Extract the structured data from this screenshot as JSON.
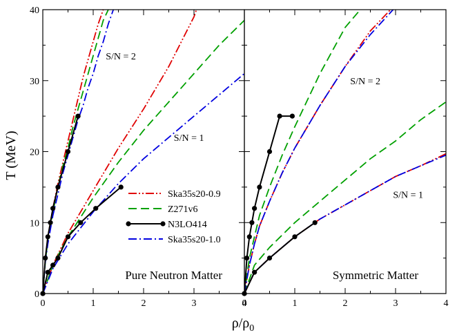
{
  "chart_data": {
    "type": "line",
    "ylabel": "T (MeV)",
    "xlabel": "ρ/ρ",
    "xlabel_sub": "0",
    "ylim": [
      0,
      40
    ],
    "yticks": [
      0,
      10,
      20,
      30,
      40
    ],
    "grid": false,
    "legend_position": "center-right of left panel",
    "series_styles": [
      {
        "name": "Ska35s20-0.9",
        "color": "#e00000",
        "dash": "dash-dot-dot",
        "markers": false
      },
      {
        "name": "Z271v6",
        "color": "#00a000",
        "dash": "dash",
        "markers": false
      },
      {
        "name": "N3LO414",
        "color": "#000000",
        "dash": "solid",
        "markers": true
      },
      {
        "name": "Ska35s20-1.0",
        "color": "#0000e0",
        "dash": "dash-dot",
        "markers": false
      }
    ],
    "panels": [
      {
        "label": "Pure Neutron Matter",
        "xlim": [
          0,
          4
        ],
        "xticks": [
          0,
          1,
          2,
          3,
          4
        ],
        "annotations": [
          {
            "text": "S/N = 2",
            "x": 1.25,
            "y": 33
          },
          {
            "text": "S/N = 1",
            "x": 2.6,
            "y": 21.5
          }
        ],
        "series": [
          {
            "name": "Ska35s20-0.9",
            "curve": "S/N = 2",
            "x": [
              0,
              0.05,
              0.1,
              0.2,
              0.3,
              0.4,
              0.5,
              0.6,
              0.7,
              0.8,
              0.9,
              1.0,
              1.1,
              1.2
            ],
            "y": [
              0,
              5,
              8,
              12,
              15.5,
              18.5,
              21.5,
              24.5,
              27.5,
              30.5,
              33,
              35.5,
              38,
              40
            ]
          },
          {
            "name": "Ska35s20-0.9",
            "curve": "S/N = 1",
            "x": [
              0,
              0.2,
              0.5,
              1.0,
              1.5,
              2.0,
              2.5,
              3.0,
              3.05
            ],
            "y": [
              0,
              4,
              8.5,
              14.5,
              20.5,
              26,
              32,
              39,
              40
            ]
          },
          {
            "name": "Z271v6",
            "curve": "S/N = 2",
            "x": [
              0,
              0.05,
              0.1,
              0.2,
              0.3,
              0.4,
              0.5,
              0.6,
              0.7,
              0.8,
              0.9,
              1.0,
              1.1,
              1.2,
              1.3
            ],
            "y": [
              0,
              4.5,
              7.5,
              11.5,
              15,
              18,
              20.5,
              23.5,
              26,
              28.5,
              31,
              33.5,
              36,
              38.5,
              40
            ]
          },
          {
            "name": "Z271v6",
            "curve": "S/N = 1",
            "x": [
              0,
              0.2,
              0.5,
              1.0,
              1.5,
              2.0,
              2.5,
              3.0,
              3.5,
              4.0
            ],
            "y": [
              0,
              4,
              8,
              13.5,
              18.5,
              23,
              27,
              31,
              35,
              38.5
            ]
          },
          {
            "name": "Ska35s20-1.0",
            "curve": "S/N = 2",
            "x": [
              0,
              0.05,
              0.1,
              0.2,
              0.3,
              0.4,
              0.5,
              0.6,
              0.7,
              0.8,
              0.9,
              1.0,
              1.1,
              1.2,
              1.3,
              1.4
            ],
            "y": [
              0,
              4.5,
              7,
              11,
              14,
              17,
              19.5,
              22,
              24.5,
              26.5,
              29,
              31,
              33.5,
              35.5,
              38,
              40
            ]
          },
          {
            "name": "Ska35s20-1.0",
            "curve": "S/N = 1",
            "x": [
              0,
              0.2,
              0.5,
              1.0,
              1.5,
              2.0,
              2.5,
              3.0,
              3.5,
              4.0
            ],
            "y": [
              0,
              3.5,
              7,
              11.5,
              15.5,
              19,
              22,
              25,
              28,
              31
            ]
          },
          {
            "name": "N3LO414",
            "curve": "S/N = 2",
            "x": [
              0,
              0.05,
              0.1,
              0.15,
              0.2,
              0.3,
              0.5,
              0.7
            ],
            "y": [
              0,
              5,
              8,
              10,
              12,
              15,
              20,
              25
            ]
          },
          {
            "name": "N3LO414",
            "curve": "S/N = 1",
            "x": [
              0,
              0.1,
              0.2,
              0.3,
              0.5,
              0.75,
              1.05,
              1.55
            ],
            "y": [
              0,
              3,
              4,
              5,
              8,
              10,
              12,
              15
            ]
          }
        ]
      },
      {
        "label": "Symmetric Matter",
        "xlim": [
          0,
          4
        ],
        "xticks": [
          0,
          1,
          2,
          3,
          4
        ],
        "annotations": [
          {
            "text": "S/N = 2",
            "x": 2.1,
            "y": 29.5
          },
          {
            "text": "S/N = 1",
            "x": 2.95,
            "y": 13.5
          }
        ],
        "series": [
          {
            "name": "Ska35s20-0.9",
            "curve": "S/N = 2",
            "x": [
              0,
              0.1,
              0.2,
              0.3,
              0.5,
              0.75,
              1.0,
              1.5,
              2.0,
              2.5,
              2.9
            ],
            "y": [
              0,
              4,
              7,
              9.5,
              13,
              17,
              20.5,
              26.5,
              32,
              37,
              40
            ]
          },
          {
            "name": "Ska35s20-0.9",
            "curve": "S/N = 1",
            "x": [
              0,
              0.2,
              0.5,
              1.0,
              1.5,
              2.0,
              2.5,
              3.0,
              3.5,
              4.0
            ],
            "y": [
              0,
              3,
              5,
              8,
              10.5,
              12.5,
              14.5,
              16.5,
              18,
              19.7
            ]
          },
          {
            "name": "Z271v6",
            "curve": "S/N = 2",
            "x": [
              0,
              0.1,
              0.2,
              0.3,
              0.5,
              0.75,
              1.0,
              1.5,
              2.0,
              2.3
            ],
            "y": [
              0,
              5,
              8,
              11,
              15,
              19.5,
              23.5,
              31,
              37.5,
              40
            ]
          },
          {
            "name": "Z271v6",
            "curve": "S/N = 1",
            "x": [
              0,
              0.2,
              0.5,
              1.0,
              1.5,
              2.0,
              2.5,
              3.0,
              3.5,
              4.0
            ],
            "y": [
              0,
              4,
              6.5,
              10,
              13,
              16,
              19,
              21.5,
              24.5,
              27
            ]
          },
          {
            "name": "Ska35s20-1.0",
            "curve": "S/N = 2",
            "x": [
              0,
              0.1,
              0.2,
              0.3,
              0.5,
              0.75,
              1.0,
              1.5,
              2.0,
              2.5,
              2.95
            ],
            "y": [
              0,
              4,
              7,
              9.5,
              13,
              17,
              20.5,
              26.5,
              32,
              36.5,
              40
            ]
          },
          {
            "name": "Ska35s20-1.0",
            "curve": "S/N = 1",
            "x": [
              0,
              0.2,
              0.5,
              1.0,
              1.5,
              2.0,
              2.5,
              3.0,
              3.5,
              4.0
            ],
            "y": [
              0,
              3,
              5,
              8,
              10.5,
              12.5,
              14.5,
              16.5,
              18,
              19.5
            ]
          },
          {
            "name": "N3LO414",
            "curve": "S/N = 2",
            "x": [
              0,
              0.05,
              0.1,
              0.15,
              0.2,
              0.3,
              0.5,
              0.7,
              0.95
            ],
            "y": [
              0,
              5,
              8,
              10,
              12,
              15,
              20,
              25,
              25
            ]
          },
          {
            "name": "N3LO414",
            "curve": "S/N = 1",
            "x": [
              0,
              0.2,
              0.5,
              1.0,
              1.4
            ],
            "y": [
              0,
              3,
              5,
              8,
              10
            ]
          }
        ]
      }
    ]
  }
}
